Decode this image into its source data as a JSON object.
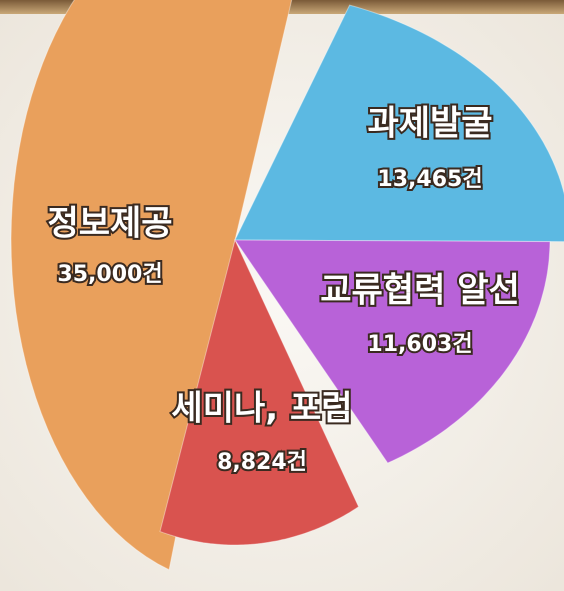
{
  "chart_data": {
    "type": "pie",
    "categories": [
      "정보제공",
      "과제발굴",
      "교류협력 알선",
      "세미나, 포럼"
    ],
    "values": [
      35000,
      13465,
      11603,
      8824
    ],
    "value_labels": [
      "35,000건",
      "13,465건",
      "11,603건",
      "8,824건"
    ],
    "colors": [
      "#e9a05c",
      "#5cb9e2",
      "#b862d8",
      "#d9534f"
    ]
  }
}
